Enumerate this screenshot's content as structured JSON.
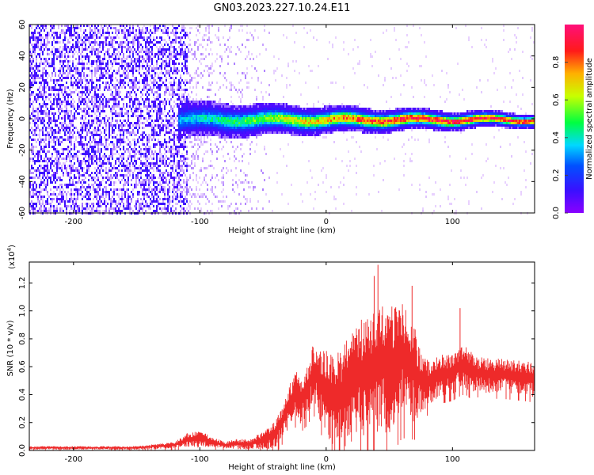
{
  "title": "GN03.2023.227.10.24.E11",
  "colors": {
    "signal_low": "#6a1bdc",
    "snr_line": "#ee2a2a",
    "axis": "#000000"
  },
  "chart_data": [
    {
      "type": "heatmap",
      "xlabel": "Height of straight line (km)",
      "ylabel": "Frequency (Hz)",
      "xlim": [
        -235,
        165
      ],
      "ylim": [
        -60,
        60
      ],
      "x_ticks": [
        -200,
        -100,
        0,
        100
      ],
      "x_tick_labels": [
        "-200",
        "-100",
        "0",
        "100"
      ],
      "y_ticks": [
        -60,
        -40,
        -20,
        0,
        20,
        40,
        60
      ],
      "y_tick_labels": [
        "-60",
        "-40",
        "-20",
        "0",
        "20",
        "40",
        "60"
      ],
      "colorbar": {
        "label": "Normalized spectral amplitude",
        "range": [
          0,
          1
        ],
        "ticks": [
          0.0,
          0.2,
          0.4,
          0.6,
          0.8
        ],
        "tick_labels": [
          "0.0",
          "0.2",
          "0.4",
          "0.6",
          "0.8"
        ],
        "colormap": "rainbow: violet-blue-cyan-green-yellow-red-pink"
      },
      "features": {
        "noise_region_x": [
          -235,
          -110
        ],
        "sparse_noise_x": [
          -110,
          -45
        ],
        "signal_band_start_x": -118,
        "signal_band_center_hz": 0,
        "signal_band_halfwidth_hz": [
          8,
          3
        ]
      }
    },
    {
      "type": "line",
      "xlabel": "Height of straight line (km)",
      "ylabel": "SNR (10 * v/v)",
      "y_multiplier": "(x10",
      "y_multiplier_exp": "4",
      "y_multiplier_close": ")",
      "xlim": [
        -235,
        165
      ],
      "ylim": [
        0.0,
        1.35
      ],
      "x_ticks": [
        -200,
        -100,
        0,
        100
      ],
      "x_tick_labels": [
        "-200",
        "-100",
        "0",
        "100"
      ],
      "y_ticks": [
        0.0,
        0.2,
        0.4,
        0.6,
        0.8,
        1.0,
        1.2
      ],
      "y_tick_labels": [
        "0.0",
        "0.2",
        "0.4",
        "0.6",
        "0.8",
        "1.0",
        "1.2"
      ],
      "series": [
        {
          "x": [
            -235,
            -200,
            -150,
            -120,
            -110,
            -100,
            -90,
            -80,
            -70,
            -60,
            -50,
            -40,
            -35,
            -30,
            -25,
            -20,
            -15,
            -10,
            -5,
            0,
            5,
            10,
            15,
            20,
            25,
            30,
            35,
            40,
            45,
            50,
            55,
            60,
            65,
            70,
            75,
            80,
            85,
            90,
            95,
            100,
            105,
            110,
            115,
            120,
            130,
            140,
            150,
            160,
            165
          ],
          "y": [
            0.02,
            0.02,
            0.02,
            0.04,
            0.08,
            0.09,
            0.06,
            0.04,
            0.05,
            0.05,
            0.08,
            0.12,
            0.22,
            0.32,
            0.42,
            0.38,
            0.45,
            0.58,
            0.5,
            0.45,
            0.4,
            0.42,
            0.45,
            0.48,
            0.55,
            0.58,
            0.6,
            0.62,
            0.64,
            0.62,
            0.66,
            0.7,
            0.66,
            0.58,
            0.52,
            0.5,
            0.52,
            0.55,
            0.56,
            0.57,
            0.6,
            0.62,
            0.58,
            0.56,
            0.55,
            0.55,
            0.54,
            0.53,
            0.52
          ],
          "spread": [
            0.01,
            0.01,
            0.01,
            0.02,
            0.04,
            0.05,
            0.03,
            0.02,
            0.03,
            0.03,
            0.05,
            0.08,
            0.1,
            0.12,
            0.14,
            0.14,
            0.15,
            0.18,
            0.2,
            0.24,
            0.26,
            0.28,
            0.3,
            0.32,
            0.34,
            0.34,
            0.36,
            0.36,
            0.38,
            0.36,
            0.36,
            0.34,
            0.32,
            0.28,
            0.18,
            0.14,
            0.12,
            0.12,
            0.12,
            0.12,
            0.12,
            0.12,
            0.12,
            0.1,
            0.1,
            0.1,
            0.1,
            0.1,
            0.1
          ]
        }
      ],
      "peaks": [
        {
          "x": 41,
          "y": 1.33
        },
        {
          "x": 38,
          "y": 1.25
        },
        {
          "x": 68,
          "y": 1.18
        },
        {
          "x": 106,
          "y": 1.02
        }
      ]
    }
  ]
}
